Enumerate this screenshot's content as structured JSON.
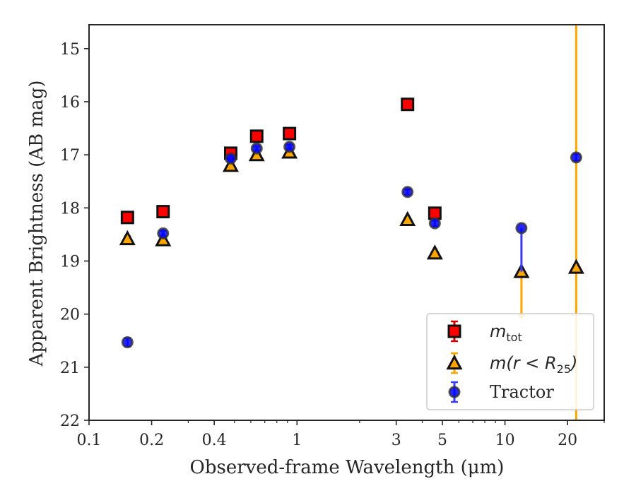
{
  "chart_data": {
    "type": "scatter",
    "xlabel": "Observed-frame Wavelength (μm)",
    "ylabel": "Apparent Brightness (AB mag)",
    "xscale": "log",
    "xlim": [
      0.1,
      30
    ],
    "ylim": [
      22,
      14.55
    ],
    "y_inverted": true,
    "x_ticks": [
      0.1,
      0.2,
      0.4,
      1,
      3,
      5,
      10,
      20
    ],
    "x_tick_labels": [
      "0.1",
      "0.2",
      "0.4",
      "1",
      "3",
      "5",
      "10",
      "20"
    ],
    "y_ticks": [
      15,
      16,
      17,
      18,
      19,
      20,
      21,
      22
    ],
    "y_tick_labels": [
      "15",
      "16",
      "17",
      "18",
      "19",
      "20",
      "21",
      "22"
    ],
    "grid": false,
    "legend_position": "lower-right",
    "series": [
      {
        "name": "m_tot",
        "label_main": "m",
        "label_sub": "tot",
        "marker": "square",
        "color": "#ff0000",
        "edge_color": "#111111",
        "errbar_color": "#d40000",
        "points": [
          {
            "x": 0.153,
            "y": 18.18,
            "err": 0.05
          },
          {
            "x": 0.227,
            "y": 18.07,
            "err": 0.04
          },
          {
            "x": 0.48,
            "y": 16.97,
            "err": 0.03
          },
          {
            "x": 0.64,
            "y": 16.65,
            "err": 0.03
          },
          {
            "x": 0.92,
            "y": 16.6,
            "err": 0.03
          },
          {
            "x": 3.4,
            "y": 16.05,
            "err": 0.03
          },
          {
            "x": 4.6,
            "y": 18.1,
            "err": 0.03
          }
        ]
      },
      {
        "name": "m(r<R25)",
        "label_main": "m(r < R",
        "label_sub": "25",
        "label_end": ")",
        "marker": "triangle",
        "color": "#ffa500",
        "edge_color": "#111111",
        "errbar_color": "#ffa500",
        "points": [
          {
            "x": 0.153,
            "y": 18.58,
            "err": 0.05
          },
          {
            "x": 0.227,
            "y": 18.6,
            "err": 0.05
          },
          {
            "x": 0.48,
            "y": 17.2,
            "err": 0.03
          },
          {
            "x": 0.64,
            "y": 17.0,
            "err": 0.03
          },
          {
            "x": 0.92,
            "y": 16.95,
            "err": 0.03
          },
          {
            "x": 3.4,
            "y": 18.22,
            "err": 0.03
          },
          {
            "x": 4.6,
            "y": 18.85,
            "err": 0.03
          },
          {
            "x": 12.0,
            "y": 19.2,
            "err_lo": 0.0,
            "err_hi": 0.1,
            "upper_limit_to": 20.05
          },
          {
            "x": 22.0,
            "y": 19.12,
            "err_full_span": true
          }
        ]
      },
      {
        "name": "Tractor",
        "label_main": "Tractor",
        "marker": "circle",
        "color": "#0000ff",
        "edge_color": "#333333",
        "errbar_color": "#3a3af0",
        "points": [
          {
            "x": 0.153,
            "y": 20.53,
            "err": 0.08
          },
          {
            "x": 0.227,
            "y": 18.48,
            "err": 0.05
          },
          {
            "x": 0.48,
            "y": 17.07,
            "err": 0.04
          },
          {
            "x": 0.64,
            "y": 16.88,
            "err": 0.04
          },
          {
            "x": 0.92,
            "y": 16.85,
            "err": 0.04
          },
          {
            "x": 3.4,
            "y": 17.7,
            "err": 0.05
          },
          {
            "x": 4.6,
            "y": 18.29,
            "err": 0.05
          },
          {
            "x": 12.0,
            "y": 18.38,
            "err_lo": 0.0,
            "err_hi": 0.82
          },
          {
            "x": 22.0,
            "y": 17.05,
            "err": 0.06
          }
        ]
      }
    ]
  }
}
